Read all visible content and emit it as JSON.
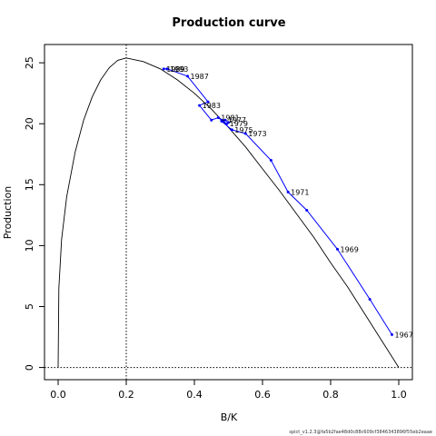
{
  "chart_data": {
    "type": "line",
    "title": "Production curve",
    "xlabel": "B/K",
    "ylabel": "Production",
    "xlim": [
      -0.04,
      1.04
    ],
    "ylim": [
      -1.0,
      26.5
    ],
    "x_ticks": [
      "0.0",
      "0.2",
      "0.4",
      "0.6",
      "0.8",
      "1.0"
    ],
    "y_ticks": [
      "0",
      "5",
      "10",
      "15",
      "20",
      "25"
    ],
    "grid": false,
    "reference_lines": {
      "vertical_x": 0.2,
      "horizontal_y": 0,
      "style": "dotted"
    },
    "footer": "spict_v1.2.3@fa5b2fae48d0c88c609cf3846343896f55eb2eaae",
    "colors": {
      "production_curve": "#000000",
      "trajectory": "#0000ff",
      "axes": "#000000"
    },
    "series": [
      {
        "role": "theoretical production curve",
        "style": "black line",
        "peak": {
          "x": 0.2,
          "y": 25.4
        },
        "x_range": [
          0.0,
          1.0
        ],
        "points": [
          [
            0.0,
            0.0
          ],
          [
            0.002,
            6.5
          ],
          [
            0.01,
            10.5
          ],
          [
            0.025,
            14.0
          ],
          [
            0.05,
            17.7
          ],
          [
            0.075,
            20.3
          ],
          [
            0.1,
            22.2
          ],
          [
            0.125,
            23.6
          ],
          [
            0.15,
            24.6
          ],
          [
            0.175,
            25.2
          ],
          [
            0.2,
            25.4
          ],
          [
            0.25,
            25.1
          ],
          [
            0.3,
            24.5
          ],
          [
            0.35,
            23.6
          ],
          [
            0.4,
            22.5
          ],
          [
            0.45,
            21.2
          ],
          [
            0.5,
            19.7
          ],
          [
            0.55,
            18.1
          ],
          [
            0.6,
            16.3
          ],
          [
            0.65,
            14.5
          ],
          [
            0.7,
            12.6
          ],
          [
            0.75,
            10.7
          ],
          [
            0.8,
            8.6
          ],
          [
            0.85,
            6.6
          ],
          [
            0.9,
            4.4
          ],
          [
            0.95,
            2.2
          ],
          [
            1.0,
            0.0
          ]
        ]
      },
      {
        "role": "annual trajectory",
        "style": "blue line with points",
        "points": [
          {
            "x": 0.98,
            "y": 2.7,
            "label": "1967"
          },
          {
            "x": 0.915,
            "y": 5.6,
            "label": ""
          },
          {
            "x": 0.82,
            "y": 9.7,
            "label": "1969"
          },
          {
            "x": 0.73,
            "y": 12.9,
            "label": ""
          },
          {
            "x": 0.675,
            "y": 14.4,
            "label": "1971"
          },
          {
            "x": 0.625,
            "y": 17.0,
            "label": ""
          },
          {
            "x": 0.55,
            "y": 19.2,
            "label": "1973"
          },
          {
            "x": 0.51,
            "y": 19.5,
            "label": ""
          },
          {
            "x": 0.51,
            "y": 19.5,
            "label": "1975"
          },
          {
            "x": 0.48,
            "y": 20.2,
            "label": ""
          },
          {
            "x": 0.49,
            "y": 20.3,
            "label": "1977"
          },
          {
            "x": 0.5,
            "y": 20.1,
            "label": ""
          },
          {
            "x": 0.495,
            "y": 20.0,
            "label": "1979"
          },
          {
            "x": 0.48,
            "y": 20.3,
            "label": ""
          },
          {
            "x": 0.47,
            "y": 20.5,
            "label": "1981"
          },
          {
            "x": 0.45,
            "y": 20.3,
            "label": ""
          },
          {
            "x": 0.415,
            "y": 21.5,
            "label": "1983"
          },
          {
            "x": 0.44,
            "y": 21.8,
            "label": ""
          },
          {
            "x": 0.38,
            "y": 23.9,
            "label": "1987"
          },
          {
            "x": 0.32,
            "y": 24.5,
            "label": ""
          },
          {
            "x": 0.31,
            "y": 24.5,
            "label": "1989"
          },
          {
            "x": 0.32,
            "y": 24.5,
            "label": "1993"
          }
        ]
      }
    ]
  }
}
